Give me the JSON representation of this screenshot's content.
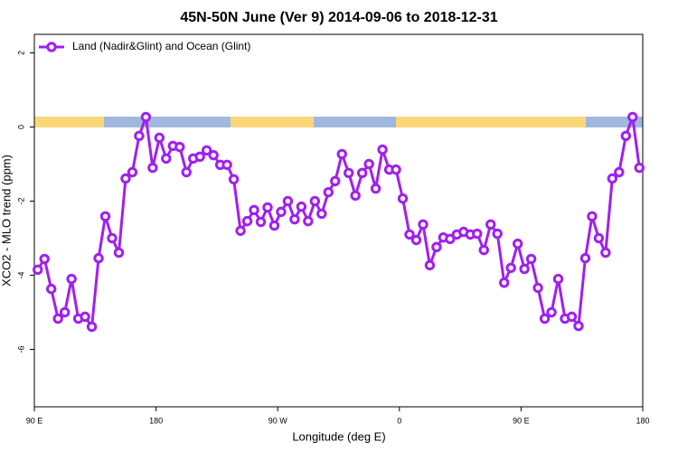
{
  "chart_data": {
    "type": "line",
    "title": "45N-50N June (Ver 9)   2014-09-06 to 2018-12-31",
    "x_label": "Longitude (deg E)",
    "y_label": "XCO2 - MLO trend (ppm)",
    "x": [
      92.5,
      97.5,
      102.5,
      107.5,
      112.5,
      117.5,
      122.5,
      127.5,
      132.5,
      137.5,
      142.5,
      147.5,
      152.5,
      157.5,
      162.5,
      167.5,
      172.5,
      177.5,
      182.5,
      187.5,
      192.5,
      197.5,
      202.5,
      207.5,
      212.5,
      217.5,
      222.5,
      227.5,
      232.5,
      237.5,
      242.5,
      247.5,
      252.5,
      257.5,
      262.5,
      267.5,
      272.5,
      277.5,
      282.5,
      287.5,
      292.5,
      297.5,
      302.5,
      307.5,
      312.5,
      317.5,
      322.5,
      327.5,
      332.5,
      337.5,
      342.5,
      347.5,
      352.5,
      357.5,
      362.5,
      367.5,
      372.5,
      377.5,
      382.5,
      387.5,
      392.5,
      397.5,
      402.5,
      407.5,
      412.5,
      417.5,
      422.5,
      427.5,
      432.5,
      437.5,
      442.5,
      447.5,
      452.5,
      457.5,
      462.5,
      467.5,
      472.5,
      477.5,
      482.5,
      487.5,
      492.5,
      497.5,
      502.5,
      507.5,
      512.5,
      517.5,
      522.5,
      527.5,
      532.5,
      537.5
    ],
    "series": [
      {
        "name": "Land (Nadir&Glint) and Ocean (Glint)",
        "color": "#a020f0",
        "values": [
          -3.85,
          -3.56,
          -4.37,
          -5.17,
          -5.0,
          -4.1,
          -5.17,
          -5.12,
          -5.39,
          -3.54,
          -2.41,
          -3.0,
          -3.39,
          -1.39,
          -1.22,
          -0.24,
          0.27,
          -1.1,
          -0.29,
          -0.85,
          -0.51,
          -0.54,
          -1.22,
          -0.85,
          -0.8,
          -0.63,
          -0.76,
          -1.02,
          -1.02,
          -1.41,
          -2.8,
          -2.54,
          -2.24,
          -2.56,
          -2.17,
          -2.66,
          -2.29,
          -2.0,
          -2.49,
          -2.15,
          -2.54,
          -2.0,
          -2.34,
          -1.76,
          -1.46,
          -0.73,
          -1.24,
          -1.85,
          -1.24,
          -1.0,
          -1.66,
          -0.61,
          -1.15,
          -1.15,
          -1.93,
          -2.9,
          -3.05,
          -2.63,
          -3.73,
          -3.24,
          -2.98,
          -3.02,
          -2.9,
          -2.83,
          -2.9,
          -2.88,
          -3.32,
          -2.63,
          -2.88,
          -4.2,
          -3.8,
          -3.15,
          -3.83,
          -3.56,
          -4.34,
          -5.17,
          -5.0,
          -4.1,
          -5.17,
          -5.12,
          -5.37,
          -3.54,
          -2.41,
          -3.0,
          -3.39,
          -1.39,
          -1.22,
          -0.24,
          0.27,
          -1.1
        ]
      }
    ],
    "xlim": [
      90,
      540
    ],
    "xticks": [
      {
        "value": 90,
        "label": "90 E"
      },
      180,
      {
        "value": 270,
        "label": "90 W"
      },
      {
        "value": 360,
        "label": "0"
      },
      {
        "value": 450,
        "label": "90 E"
      },
      {
        "value": 540,
        "label": "180"
      }
    ],
    "ylim": [
      -7.55,
      2.5
    ],
    "yticks": [
      -6,
      -4,
      -2,
      0,
      2
    ],
    "legend": "topleft"
  }
}
